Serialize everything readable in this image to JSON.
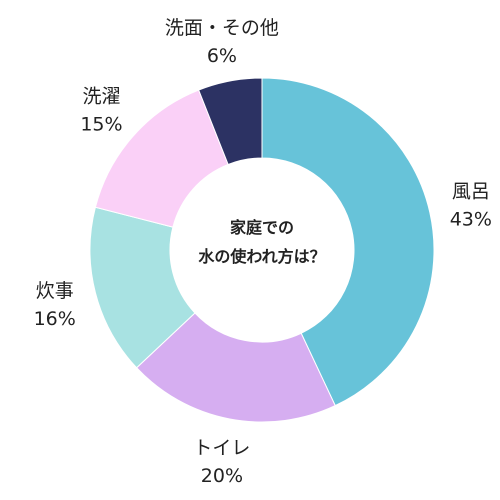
{
  "chart_data": {
    "type": "pie",
    "style": "donut",
    "center_text": [
      "家庭での",
      "水の使われ方は？"
    ],
    "slices": [
      {
        "name": "風呂",
        "value": 43,
        "value_label": "43%",
        "color": "#67c3d9"
      },
      {
        "name": "トイレ",
        "value": 20,
        "value_label": "20%",
        "color": "#d6aef1"
      },
      {
        "name": "炊事",
        "value": 16,
        "value_label": "16%",
        "color": "#a8e2e2"
      },
      {
        "name": "洗濯",
        "value": 15,
        "value_label": "15%",
        "color": "#fad0f7"
      },
      {
        "name": "洗面・その他",
        "value": 6,
        "value_label": "6%",
        "color": "#2c3263"
      }
    ],
    "start_angle_deg": 0,
    "direction": "clockwise"
  }
}
